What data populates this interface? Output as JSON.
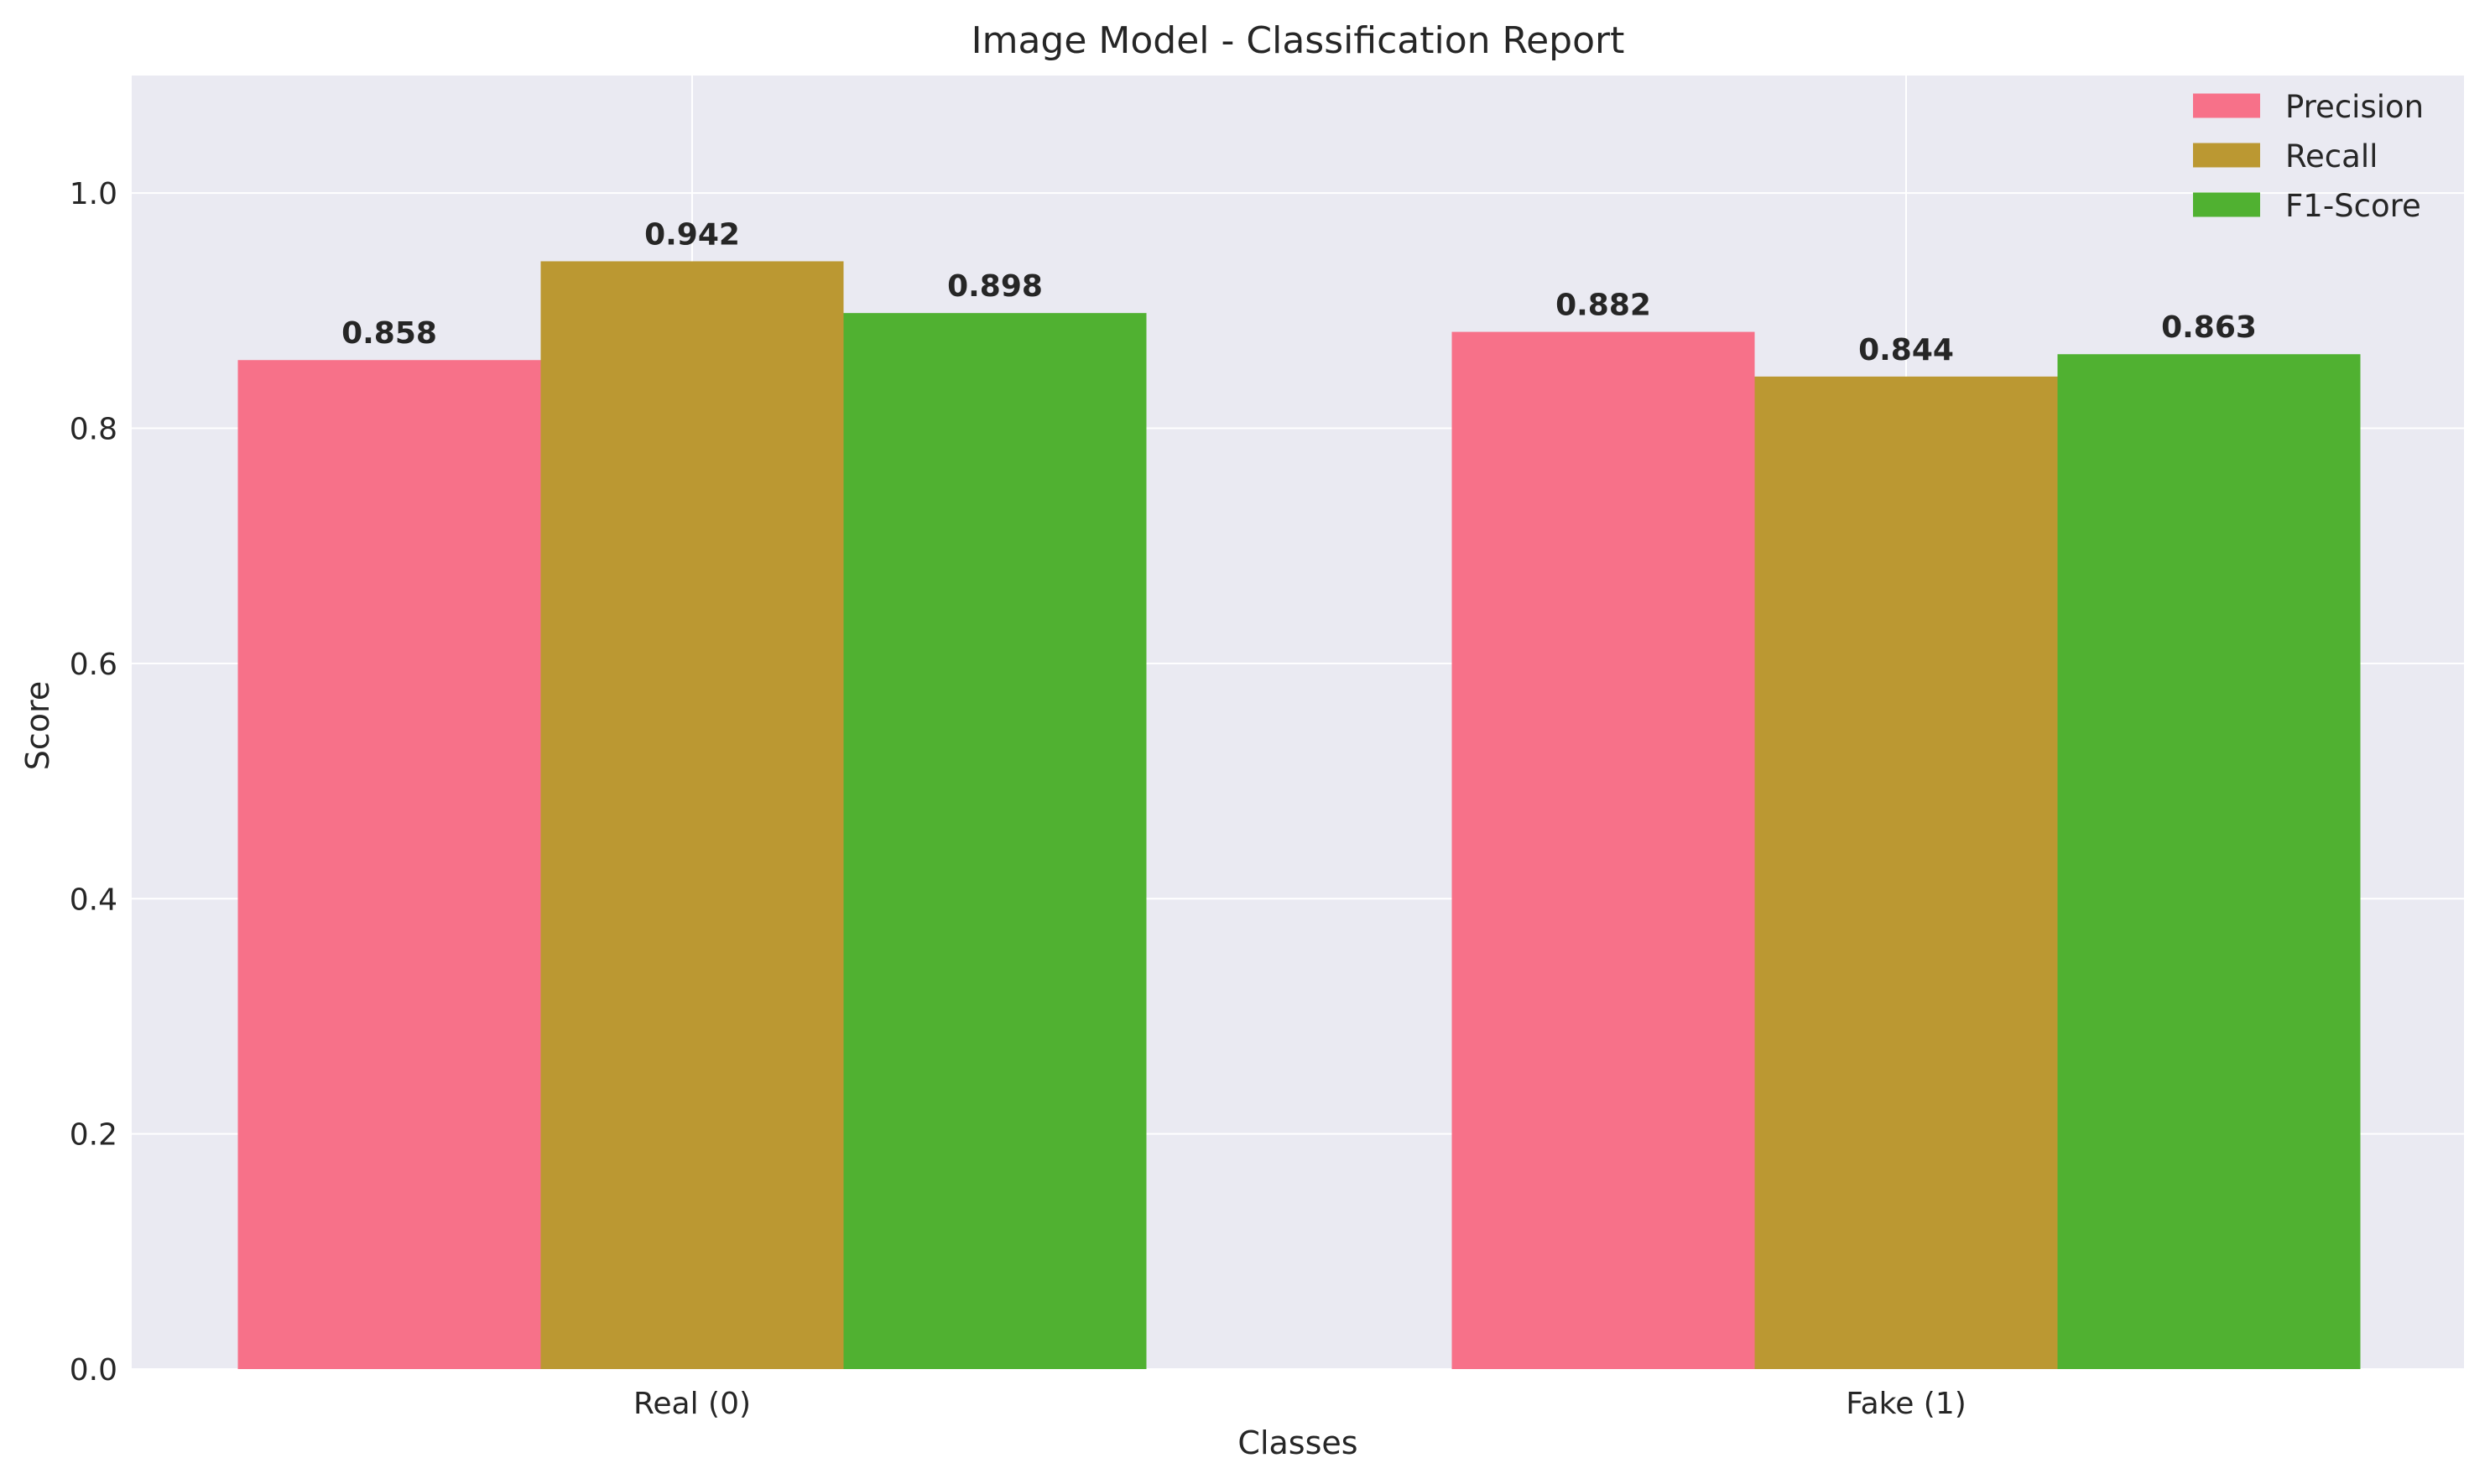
{
  "chart_data": {
    "type": "bar",
    "title": "Image Model - Classification Report",
    "xlabel": "Classes",
    "ylabel": "Score",
    "categories": [
      "Real (0)",
      "Fake (1)"
    ],
    "series": [
      {
        "name": "Precision",
        "values": [
          0.858,
          0.882
        ],
        "color": "#f77189"
      },
      {
        "name": "Recall",
        "values": [
          0.942,
          0.844
        ],
        "color": "#bb9832"
      },
      {
        "name": "F1-Score",
        "values": [
          0.898,
          0.863
        ],
        "color": "#50b131"
      }
    ],
    "value_labels": [
      [
        "0.858",
        "0.882"
      ],
      [
        "0.942",
        "0.844"
      ],
      [
        "0.898",
        "0.863"
      ]
    ],
    "ylim": [
      0,
      1.1
    ],
    "yticks": [
      0.0,
      0.2,
      0.4,
      0.6,
      0.8,
      1.0
    ],
    "ytick_labels": [
      "0.0",
      "0.2",
      "0.4",
      "0.6",
      "0.8",
      "1.0"
    ],
    "grid": true,
    "legend_position": "top-right",
    "background_color": "#eaeaf2",
    "grid_color": "#ffffff"
  }
}
